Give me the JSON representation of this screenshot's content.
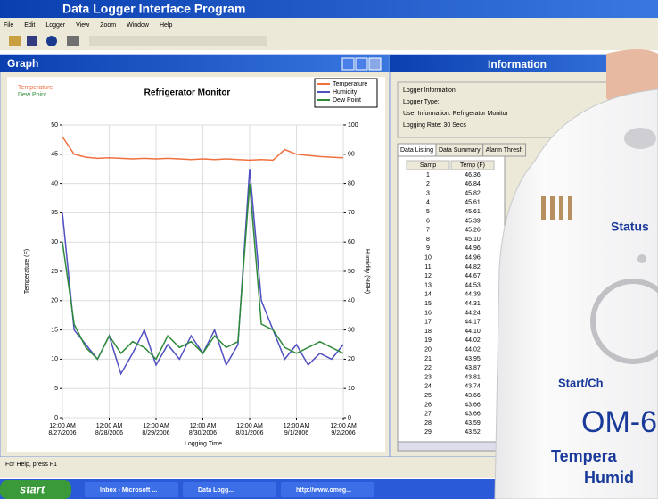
{
  "app": {
    "title": "Data Logger Interface Program",
    "menu": [
      "File",
      "Edit",
      "Logger",
      "View",
      "Zoom",
      "Window",
      "Help"
    ],
    "status": "For Help, press F1"
  },
  "taskbar": {
    "start": "start",
    "items": [
      "Inbox - Microsoft ...",
      "Data Logg...",
      "http://www.omeg..."
    ]
  },
  "graph_window": {
    "title": "Graph"
  },
  "chart_data": {
    "type": "line",
    "title": "Refrigerator Monitor",
    "corner_labels": [
      "Temperature",
      "Dew Point"
    ],
    "y_label": "Temperature (F)",
    "y2_label": "Humidity (%RH)",
    "x_label": "Logging Time",
    "x": [
      0,
      6,
      12,
      18,
      24,
      30,
      36,
      42,
      48,
      54,
      60,
      66,
      72,
      78,
      84,
      90,
      96,
      102,
      108,
      114,
      120,
      126,
      132,
      138,
      144
    ],
    "xlim": [
      0,
      144
    ],
    "xticks": [
      {
        "value": 0,
        "label": "12:00 AM",
        "date": "8/27/2006"
      },
      {
        "value": 24,
        "label": "12:00 AM",
        "date": "8/28/2006"
      },
      {
        "value": 48,
        "label": "12:00 AM",
        "date": "8/29/2006"
      },
      {
        "value": 72,
        "label": "12:00 AM",
        "date": "8/30/2006"
      },
      {
        "value": 96,
        "label": "12:00 AM",
        "date": "8/31/2006"
      },
      {
        "value": 120,
        "label": "12:00 AM",
        "date": "9/1/2006"
      },
      {
        "value": 144,
        "label": "12:00 AM",
        "date": "9/2/2006"
      }
    ],
    "ylim": [
      0,
      50
    ],
    "yticks": [
      0,
      5,
      10,
      15,
      20,
      25,
      30,
      35,
      40,
      45,
      50
    ],
    "y2lim": [
      0,
      100
    ],
    "y2ticks": [
      0,
      10,
      20,
      30,
      40,
      50,
      60,
      70,
      80,
      90,
      100
    ],
    "grid": true,
    "legend": "top-right",
    "series": [
      {
        "name": "Temperature",
        "color": "#f07040",
        "values": [
          48,
          45,
          44.5,
          44.3,
          44.4,
          44.3,
          44.2,
          44.3,
          44.2,
          44.3,
          44.2,
          44.1,
          44.2,
          44.1,
          44.2,
          44.1,
          44.0,
          44.1,
          44.0,
          45.8,
          45.0,
          44.8,
          44.6,
          44.5,
          44.4
        ]
      },
      {
        "name": "Humidity",
        "color": "#5050c0",
        "axis": "y2",
        "values": [
          70,
          30,
          25,
          20,
          28,
          15,
          22,
          30,
          18,
          25,
          20,
          28,
          22,
          30,
          18,
          25,
          85,
          40,
          30,
          20,
          25,
          18,
          22,
          20,
          25
        ]
      },
      {
        "name": "Dew Point",
        "color": "#2e8b3a",
        "values": [
          30,
          16,
          12,
          10,
          14,
          11,
          13,
          12,
          10,
          14,
          12,
          13,
          11,
          14,
          12,
          13,
          40,
          16,
          15,
          12,
          11,
          12,
          13,
          12,
          11
        ]
      }
    ]
  },
  "info_window": {
    "title": "Information",
    "fields": [
      "Logger Information",
      "Logger Type:",
      "User Information:   Refrigerator Monitor",
      "Logging Rate:   30 Secs"
    ],
    "tabs": [
      "Data Listing",
      "Data Summary",
      "Alarm Thresh"
    ],
    "table": {
      "columns": [
        "Samp",
        "Temp (F)"
      ],
      "rows": [
        [
          1,
          "46.36"
        ],
        [
          2,
          "46.84"
        ],
        [
          3,
          "45.82"
        ],
        [
          4,
          "45.61"
        ],
        [
          5,
          "45.61"
        ],
        [
          6,
          "45.39"
        ],
        [
          7,
          "45.26"
        ],
        [
          8,
          "45.10"
        ],
        [
          9,
          "44.96"
        ],
        [
          10,
          "44.96"
        ],
        [
          11,
          "44.82"
        ],
        [
          12,
          "44.67"
        ],
        [
          13,
          "44.53"
        ],
        [
          14,
          "44.39"
        ],
        [
          15,
          "44.31"
        ],
        [
          16,
          "44.24"
        ],
        [
          17,
          "44.17"
        ],
        [
          18,
          "44.10"
        ],
        [
          19,
          "44.02"
        ],
        [
          20,
          "44.02"
        ],
        [
          21,
          "43.95"
        ],
        [
          22,
          "43.87"
        ],
        [
          23,
          "43.81"
        ],
        [
          24,
          "43.74"
        ],
        [
          25,
          "43.66"
        ],
        [
          26,
          "43.66"
        ],
        [
          27,
          "43.66"
        ],
        [
          28,
          "43.59"
        ],
        [
          29,
          "43.52"
        ]
      ]
    }
  },
  "product": {
    "texts": [
      "Status",
      "Start/Ch",
      "OM-6",
      "Tempera",
      "Humid"
    ]
  }
}
